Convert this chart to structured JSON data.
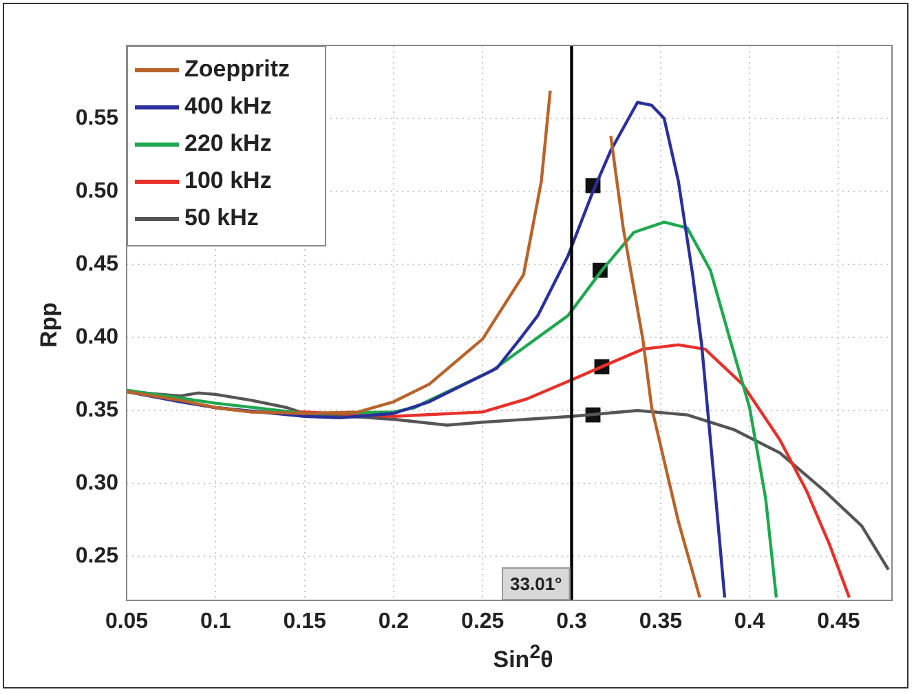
{
  "chart_data": {
    "type": "line",
    "xlabel": "Sin$^{2}$θ",
    "ylabel": "Rpp",
    "xlim": [
      0.05,
      0.48
    ],
    "ylim": [
      0.22,
      0.6
    ],
    "xticks": [
      0.05,
      0.1,
      0.15,
      0.2,
      0.25,
      0.3,
      0.35,
      0.4,
      0.45
    ],
    "yticks": [
      0.25,
      {
        "value": 0.3,
        "label": "0.30"
      },
      0.35,
      {
        "value": 0.4,
        "label": "0.40"
      },
      0.45,
      {
        "value": 0.5,
        "label": "0.50"
      },
      0.55
    ],
    "grid": true,
    "legend": "top left",
    "marker": "none",
    "ref_lines": [
      {
        "axis": "x",
        "value": 0.3,
        "color": "#000000"
      }
    ],
    "annotations": [
      "33.01°"
    ],
    "series": [
      {
        "name": "Zoeppritz",
        "color": "#b8632a",
        "x": [
          0.05,
          0.08,
          0.1,
          0.12,
          0.15,
          0.18,
          0.2,
          0.22,
          0.25,
          0.273,
          0.283,
          0.288,
          0.291,
          0.304,
          0.317,
          0.322,
          0.329,
          0.34,
          0.345,
          0.36,
          0.372
        ],
        "values": [
          0.363,
          0.357,
          0.352,
          0.349,
          0.348,
          0.349,
          0.356,
          0.368,
          0.399,
          0.443,
          0.507,
          0.569,
          null,
          null,
          null,
          0.538,
          0.475,
          0.399,
          0.352,
          0.274,
          0.222
        ]
      },
      {
        "name": "400 kHz",
        "color": "#2a2f9c",
        "x": [
          0.05,
          0.08,
          0.1,
          0.15,
          0.17,
          0.2,
          0.22,
          0.258,
          0.271,
          0.281,
          0.298,
          0.312,
          0.322,
          0.337,
          0.345,
          0.352,
          0.36,
          0.368,
          0.373,
          0.381,
          0.386
        ],
        "values": [
          0.363,
          0.356,
          0.352,
          0.346,
          0.345,
          0.348,
          0.356,
          0.379,
          0.399,
          0.415,
          0.456,
          0.5,
          0.528,
          0.561,
          0.559,
          0.55,
          0.507,
          0.443,
          0.396,
          0.29,
          0.222
        ]
      },
      {
        "name": "220 kHz",
        "color": "#1fa84f",
        "x": [
          0.05,
          0.1,
          0.15,
          0.2,
          0.212,
          0.22,
          0.255,
          0.298,
          0.317,
          0.335,
          0.352,
          0.365,
          0.378,
          0.388,
          0.4,
          0.409,
          0.415
        ],
        "values": [
          0.364,
          0.355,
          0.348,
          0.349,
          0.352,
          0.357,
          0.377,
          0.415,
          0.446,
          0.472,
          0.479,
          0.475,
          0.446,
          0.403,
          0.352,
          0.29,
          0.222
        ]
      },
      {
        "name": "100 kHz",
        "color": "#e8302a",
        "x": [
          0.05,
          0.1,
          0.12,
          0.15,
          0.2,
          0.25,
          0.275,
          0.3,
          0.317,
          0.34,
          0.36,
          0.375,
          0.396,
          0.417,
          0.432,
          0.445,
          0.456
        ],
        "values": [
          0.363,
          0.352,
          0.349,
          0.349,
          0.346,
          0.349,
          0.358,
          0.371,
          0.38,
          0.392,
          0.395,
          0.392,
          0.368,
          0.33,
          0.295,
          0.258,
          0.222
        ]
      },
      {
        "name": "50 kHz",
        "color": "#555555",
        "x": [
          0.05,
          0.08,
          0.09,
          0.1,
          0.12,
          0.14,
          0.15,
          0.2,
          0.23,
          0.25,
          0.3,
          0.337,
          0.365,
          0.391,
          0.417,
          0.442,
          0.463,
          0.478
        ],
        "values": [
          0.363,
          0.36,
          0.362,
          0.361,
          0.357,
          0.352,
          0.348,
          0.344,
          0.34,
          0.342,
          0.346,
          0.35,
          0.347,
          0.337,
          0.321,
          0.295,
          0.271,
          0.241
        ]
      },
      {
        "type": "scatter",
        "marker": "square",
        "color": "#111111",
        "x": [
          0.312,
          0.316,
          0.317,
          0.312
        ],
        "values": [
          0.504,
          0.446,
          0.38,
          0.347
        ]
      }
    ]
  }
}
